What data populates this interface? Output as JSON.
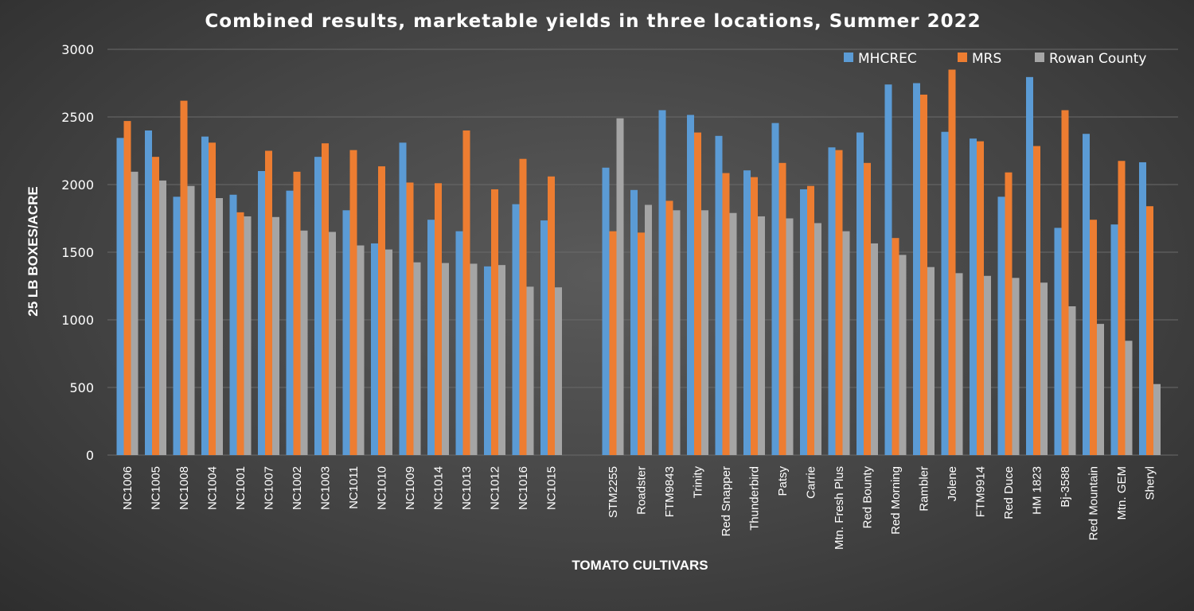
{
  "chart_data": {
    "type": "bar",
    "title": "Combined results, marketable yields in three locations, Summer 2022",
    "xlabel": "TOMATO CULTIVARS",
    "ylabel": "25 LB BOXES/ACRE",
    "ylim": [
      0,
      3000
    ],
    "yticks": [
      0,
      500,
      1000,
      1500,
      2000,
      2500,
      3000
    ],
    "grid": true,
    "legend_position": "top-right",
    "colors": {
      "MHCREC": "#5b9bd5",
      "MRS": "#ed7d31",
      "Rowan County": "#a5a5a5"
    },
    "groups": [
      [
        "NC1006",
        "NC1005",
        "NC1008",
        "NC1004",
        "NC1001",
        "NC1007",
        "NC1002",
        "NC1003",
        "NC1011",
        "NC1010",
        "NC1009",
        "NC1014",
        "NC1013",
        "NC1012",
        "NC1016",
        "NC1015"
      ],
      [
        "STM2255",
        "Roadster",
        "FTM9843",
        "Trinity",
        "Red Snapper",
        "Thunderbird",
        "Patsy",
        "Carrie",
        "Mtn. Fresh Plus",
        "Red Bounty",
        "Red Morning",
        "Rambler",
        "Jolene",
        "FTM9914",
        "Red Duce",
        "HM 1823",
        "Bj-3588",
        "Red Mountain",
        "Mtn. GEM",
        "Sheryl"
      ]
    ],
    "categories": [
      "NC1006",
      "NC1005",
      "NC1008",
      "NC1004",
      "NC1001",
      "NC1007",
      "NC1002",
      "NC1003",
      "NC1011",
      "NC1010",
      "NC1009",
      "NC1014",
      "NC1013",
      "NC1012",
      "NC1016",
      "NC1015",
      "STM2255",
      "Roadster",
      "FTM9843",
      "Trinity",
      "Red Snapper",
      "Thunderbird",
      "Patsy",
      "Carrie",
      "Mtn. Fresh Plus",
      "Red Bounty",
      "Red Morning",
      "Rambler",
      "Jolene",
      "FTM9914",
      "Red Duce",
      "HM 1823",
      "Bj-3588",
      "Red Mountain",
      "Mtn. GEM",
      "Sheryl"
    ],
    "series": [
      {
        "name": "MHCREC",
        "values": [
          2345,
          2400,
          1910,
          2355,
          1925,
          2100,
          1955,
          2205,
          1810,
          1565,
          2310,
          1740,
          1655,
          1395,
          1855,
          1735,
          2125,
          1960,
          2550,
          2515,
          2360,
          2105,
          2455,
          1965,
          2275,
          2385,
          2740,
          2750,
          2390,
          2340,
          1910,
          2795,
          1680,
          2375,
          1705,
          2165
        ]
      },
      {
        "name": "MRS",
        "values": [
          2470,
          2205,
          2620,
          2310,
          1795,
          2250,
          2095,
          2305,
          2255,
          2135,
          2015,
          2010,
          2400,
          1965,
          2190,
          2060,
          1655,
          1645,
          1880,
          2385,
          2085,
          2055,
          2160,
          1990,
          2255,
          2160,
          1605,
          2665,
          2850,
          2320,
          2090,
          2285,
          2550,
          1740,
          2175,
          1840
        ]
      },
      {
        "name": "Rowan County",
        "values": [
          2095,
          2030,
          1990,
          1900,
          1765,
          1760,
          1660,
          1650,
          1550,
          1520,
          1425,
          1420,
          1415,
          1405,
          1245,
          1240,
          2490,
          1850,
          1810,
          1810,
          1790,
          1765,
          1750,
          1715,
          1655,
          1565,
          1480,
          1390,
          1345,
          1325,
          1310,
          1275,
          1100,
          970,
          845,
          525
        ]
      }
    ]
  }
}
